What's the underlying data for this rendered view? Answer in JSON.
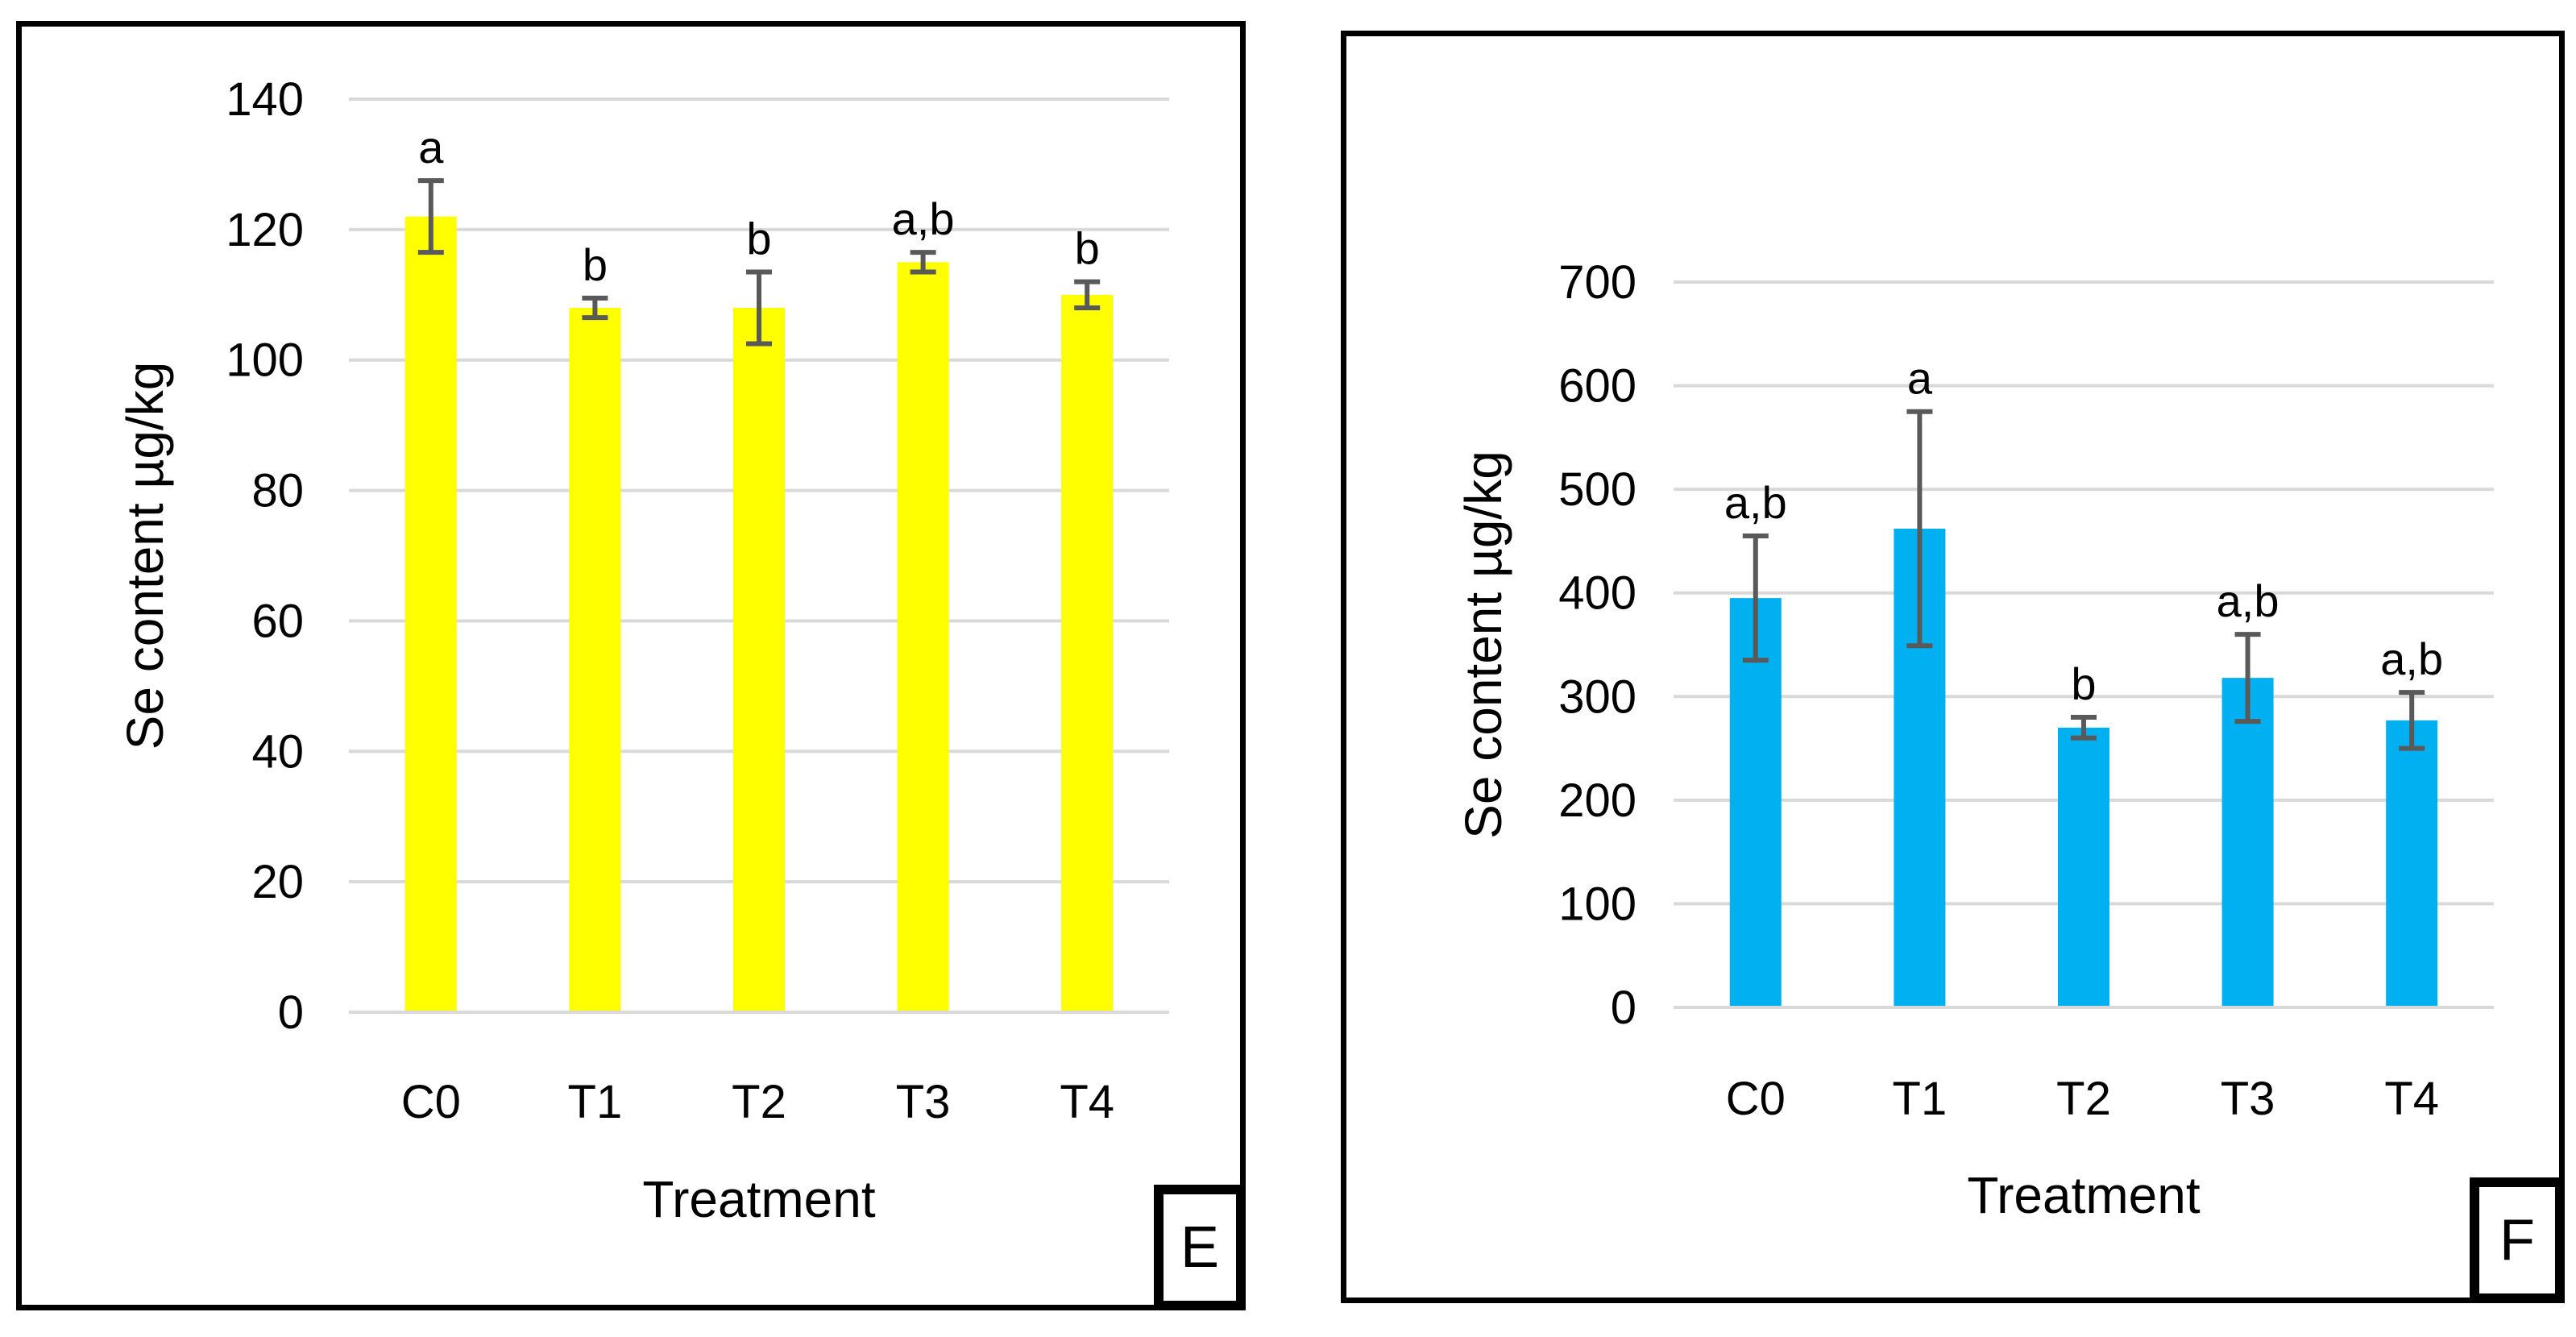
{
  "chart_data": [
    {
      "panel": "E",
      "type": "bar",
      "categories": [
        "C0",
        "T1",
        "T2",
        "T3",
        "T4"
      ],
      "values": [
        122,
        108,
        108,
        115,
        110
      ],
      "errors": [
        5.5,
        1.5,
        5.5,
        1.5,
        2
      ],
      "significance": [
        "a",
        "b",
        "b",
        "a,b",
        "b"
      ],
      "xlabel": "Treatment",
      "ylabel": "Se content µg/kg",
      "ylim": [
        0,
        140
      ],
      "yticks": [
        0,
        20,
        40,
        60,
        80,
        100,
        120,
        140
      ],
      "ytick_labels": [
        "0",
        "20",
        "40",
        "60",
        "80",
        "100",
        "120",
        "140"
      ],
      "bar_color": "#FFFF00",
      "grid": true
    },
    {
      "panel": "F",
      "type": "bar",
      "categories": [
        "C0",
        "T1",
        "T2",
        "T3",
        "T4"
      ],
      "values": [
        395,
        462,
        270,
        318,
        277
      ],
      "errors": [
        60,
        113,
        10,
        42,
        27
      ],
      "significance": [
        "a,b",
        "a",
        "b",
        "a,b",
        "a,b"
      ],
      "xlabel": "Treatment",
      "ylabel": "Se content µg/kg",
      "ylim": [
        0,
        700
      ],
      "yticks": [
        0,
        100,
        200,
        300,
        400,
        500,
        600,
        700
      ],
      "ytick_labels": [
        "0",
        "100",
        "200",
        "300",
        "400",
        "500",
        "600",
        "700"
      ],
      "bar_color": "#00B0F0",
      "grid": true
    }
  ],
  "panels": {
    "e_label": "E",
    "f_label": "F"
  },
  "colors": {
    "grid": "#D9D9D9",
    "error_bar": "#595959",
    "text": "#000000"
  }
}
